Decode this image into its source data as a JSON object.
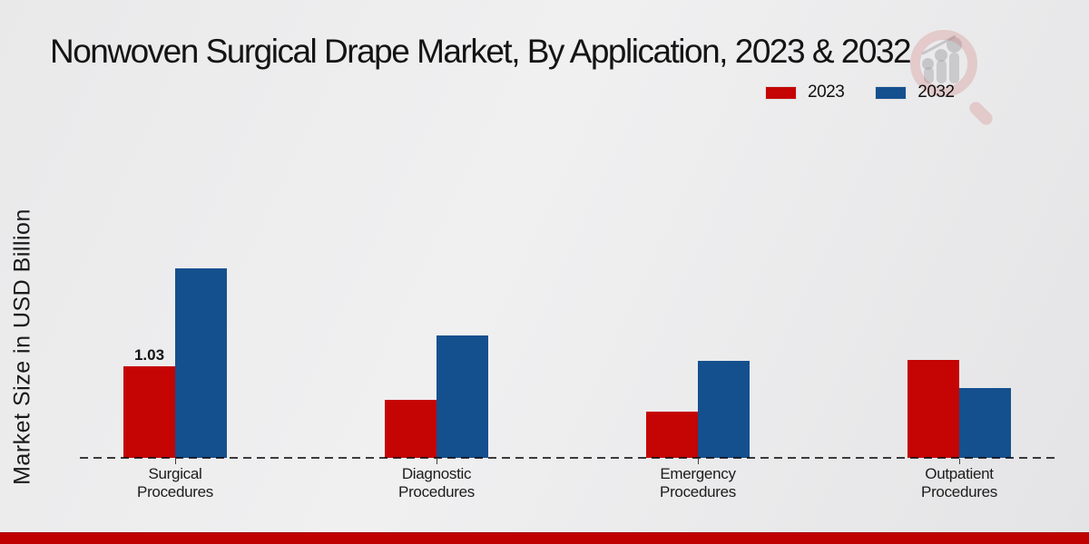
{
  "title": "Nonwoven Surgical Drape Market, By Application, 2023 & 2032",
  "y_axis_label": "Market Size in USD Billion",
  "legend": [
    {
      "label": "2023",
      "color": "#c50404"
    },
    {
      "label": "2032",
      "color": "#15508e"
    }
  ],
  "branding": {
    "logo": "magnifier-bar-chart-watermark",
    "footer_color": "#c00101"
  },
  "chart_data": {
    "type": "bar",
    "categories": [
      "Surgical Procedures",
      "Diagnostic Procedures",
      "Emergency Procedures",
      "Outpatient Procedures"
    ],
    "series": [
      {
        "name": "2023",
        "color": "#c50404",
        "values": [
          1.03,
          0.65,
          0.52,
          1.1
        ]
      },
      {
        "name": "2032",
        "color": "#15508e",
        "values": [
          2.13,
          1.38,
          1.09,
          0.79
        ]
      }
    ],
    "annotations": [
      {
        "series": "2023",
        "category_index": 0,
        "text": "1.03"
      }
    ],
    "title": "Nonwoven Surgical Drape Market, By Application, 2023 & 2032",
    "xlabel": "",
    "ylabel": "Market Size in USD Billion",
    "y_axis_ticks_visible": false,
    "baseline_style": "dashed",
    "grid": false,
    "legend_position": "top-right"
  }
}
